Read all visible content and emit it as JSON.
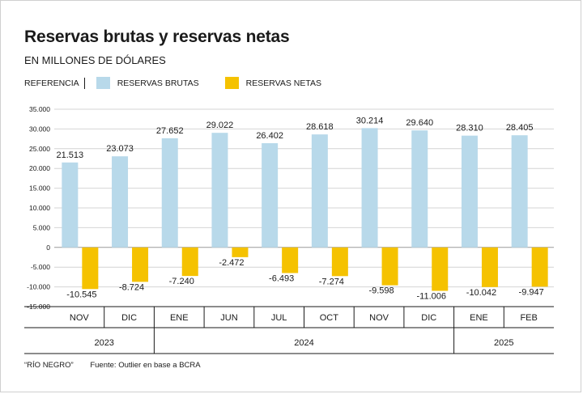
{
  "title": "Reservas brutas y reservas netas",
  "subtitle": "EN MILLONES DE DÓLARES",
  "legend": {
    "label": "REFERENCIA",
    "items": [
      {
        "name": "RESERVAS BRUTAS",
        "color": "#b8d9ea"
      },
      {
        "name": "RESERVAS NETAS",
        "color": "#f5c200"
      }
    ]
  },
  "chart_data": {
    "type": "bar",
    "categories": [
      "NOV",
      "DIC",
      "ENE",
      "JUN",
      "JUL",
      "OCT",
      "NOV",
      "DIC",
      "ENE",
      "FEB"
    ],
    "years": [
      {
        "label": "2023",
        "span": 2
      },
      {
        "label": "2024",
        "span": 6
      },
      {
        "label": "2025",
        "span": 2
      }
    ],
    "series": [
      {
        "name": "RESERVAS BRUTAS",
        "color": "#b8d9ea",
        "values": [
          21513,
          23073,
          27652,
          29022,
          26402,
          28618,
          30214,
          29640,
          28310,
          28405
        ],
        "labels": [
          "21.513",
          "23.073",
          "27.652",
          "29.022",
          "26.402",
          "28.618",
          "30.214",
          "29.640",
          "28.310",
          "28.405"
        ]
      },
      {
        "name": "RESERVAS NETAS",
        "color": "#f5c200",
        "values": [
          -10545,
          -8724,
          -7240,
          -2472,
          -6493,
          -7274,
          -9598,
          -11006,
          -10042,
          -9947
        ],
        "labels": [
          "-10.545",
          "-8.724",
          "-7.240",
          "-2.472",
          "-6.493",
          "-7.274",
          "-9.598",
          "-11.006",
          "-10.042",
          "-9.947"
        ]
      }
    ],
    "yticks": [
      35000,
      30000,
      25000,
      20000,
      15000,
      10000,
      5000,
      0,
      -5000,
      -10000,
      -15000
    ],
    "ytick_labels": [
      "35.000",
      "30.000",
      "25.000",
      "20.000",
      "15.000",
      "10.000",
      "5.000",
      "0",
      "-5.000",
      "-10.000",
      "-15.000"
    ],
    "ylim": [
      -15000,
      35000
    ],
    "grid": true
  },
  "footer": {
    "credit": "“RÍO NEGRO”",
    "source": "Fuente: Outlier en base a BCRA"
  }
}
